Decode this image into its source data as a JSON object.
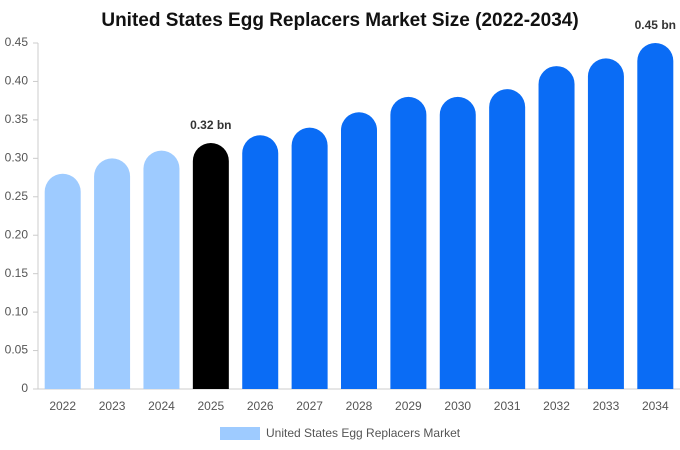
{
  "chart_data": {
    "type": "bar",
    "title": "United States Egg Replacers Market Size (2022-2034)",
    "categories": [
      "2022",
      "2023",
      "2024",
      "2025",
      "2026",
      "2027",
      "2028",
      "2029",
      "2030",
      "2031",
      "2032",
      "2033",
      "2034"
    ],
    "series": [
      {
        "name": "United States Egg Replacers Market",
        "color": "#9ecbff",
        "colors": [
          "#9ecbff",
          "#9ecbff",
          "#9ecbff",
          "#000000",
          "#0a6cf5",
          "#0a6cf5",
          "#0a6cf5",
          "#0a6cf5",
          "#0a6cf5",
          "#0a6cf5",
          "#0a6cf5",
          "#0a6cf5",
          "#0a6cf5"
        ],
        "values": [
          0.28,
          0.3,
          0.31,
          0.32,
          0.33,
          0.34,
          0.36,
          0.38,
          0.38,
          0.39,
          0.42,
          0.43,
          0.45
        ],
        "value_labels": [
          null,
          null,
          null,
          "0.32 bn",
          null,
          null,
          null,
          null,
          null,
          null,
          null,
          null,
          "0.45 bn"
        ]
      }
    ],
    "ylim": [
      0,
      0.45
    ],
    "yticks": [
      0,
      0.05,
      {
        "value": 0.1,
        "label": "0.10"
      },
      0.15,
      {
        "value": 0.2,
        "label": "0.20"
      },
      0.25,
      {
        "value": 0.3,
        "label": "0.30"
      },
      0.35,
      {
        "value": 0.4,
        "label": "0.40"
      },
      0.45
    ],
    "grid": false
  }
}
